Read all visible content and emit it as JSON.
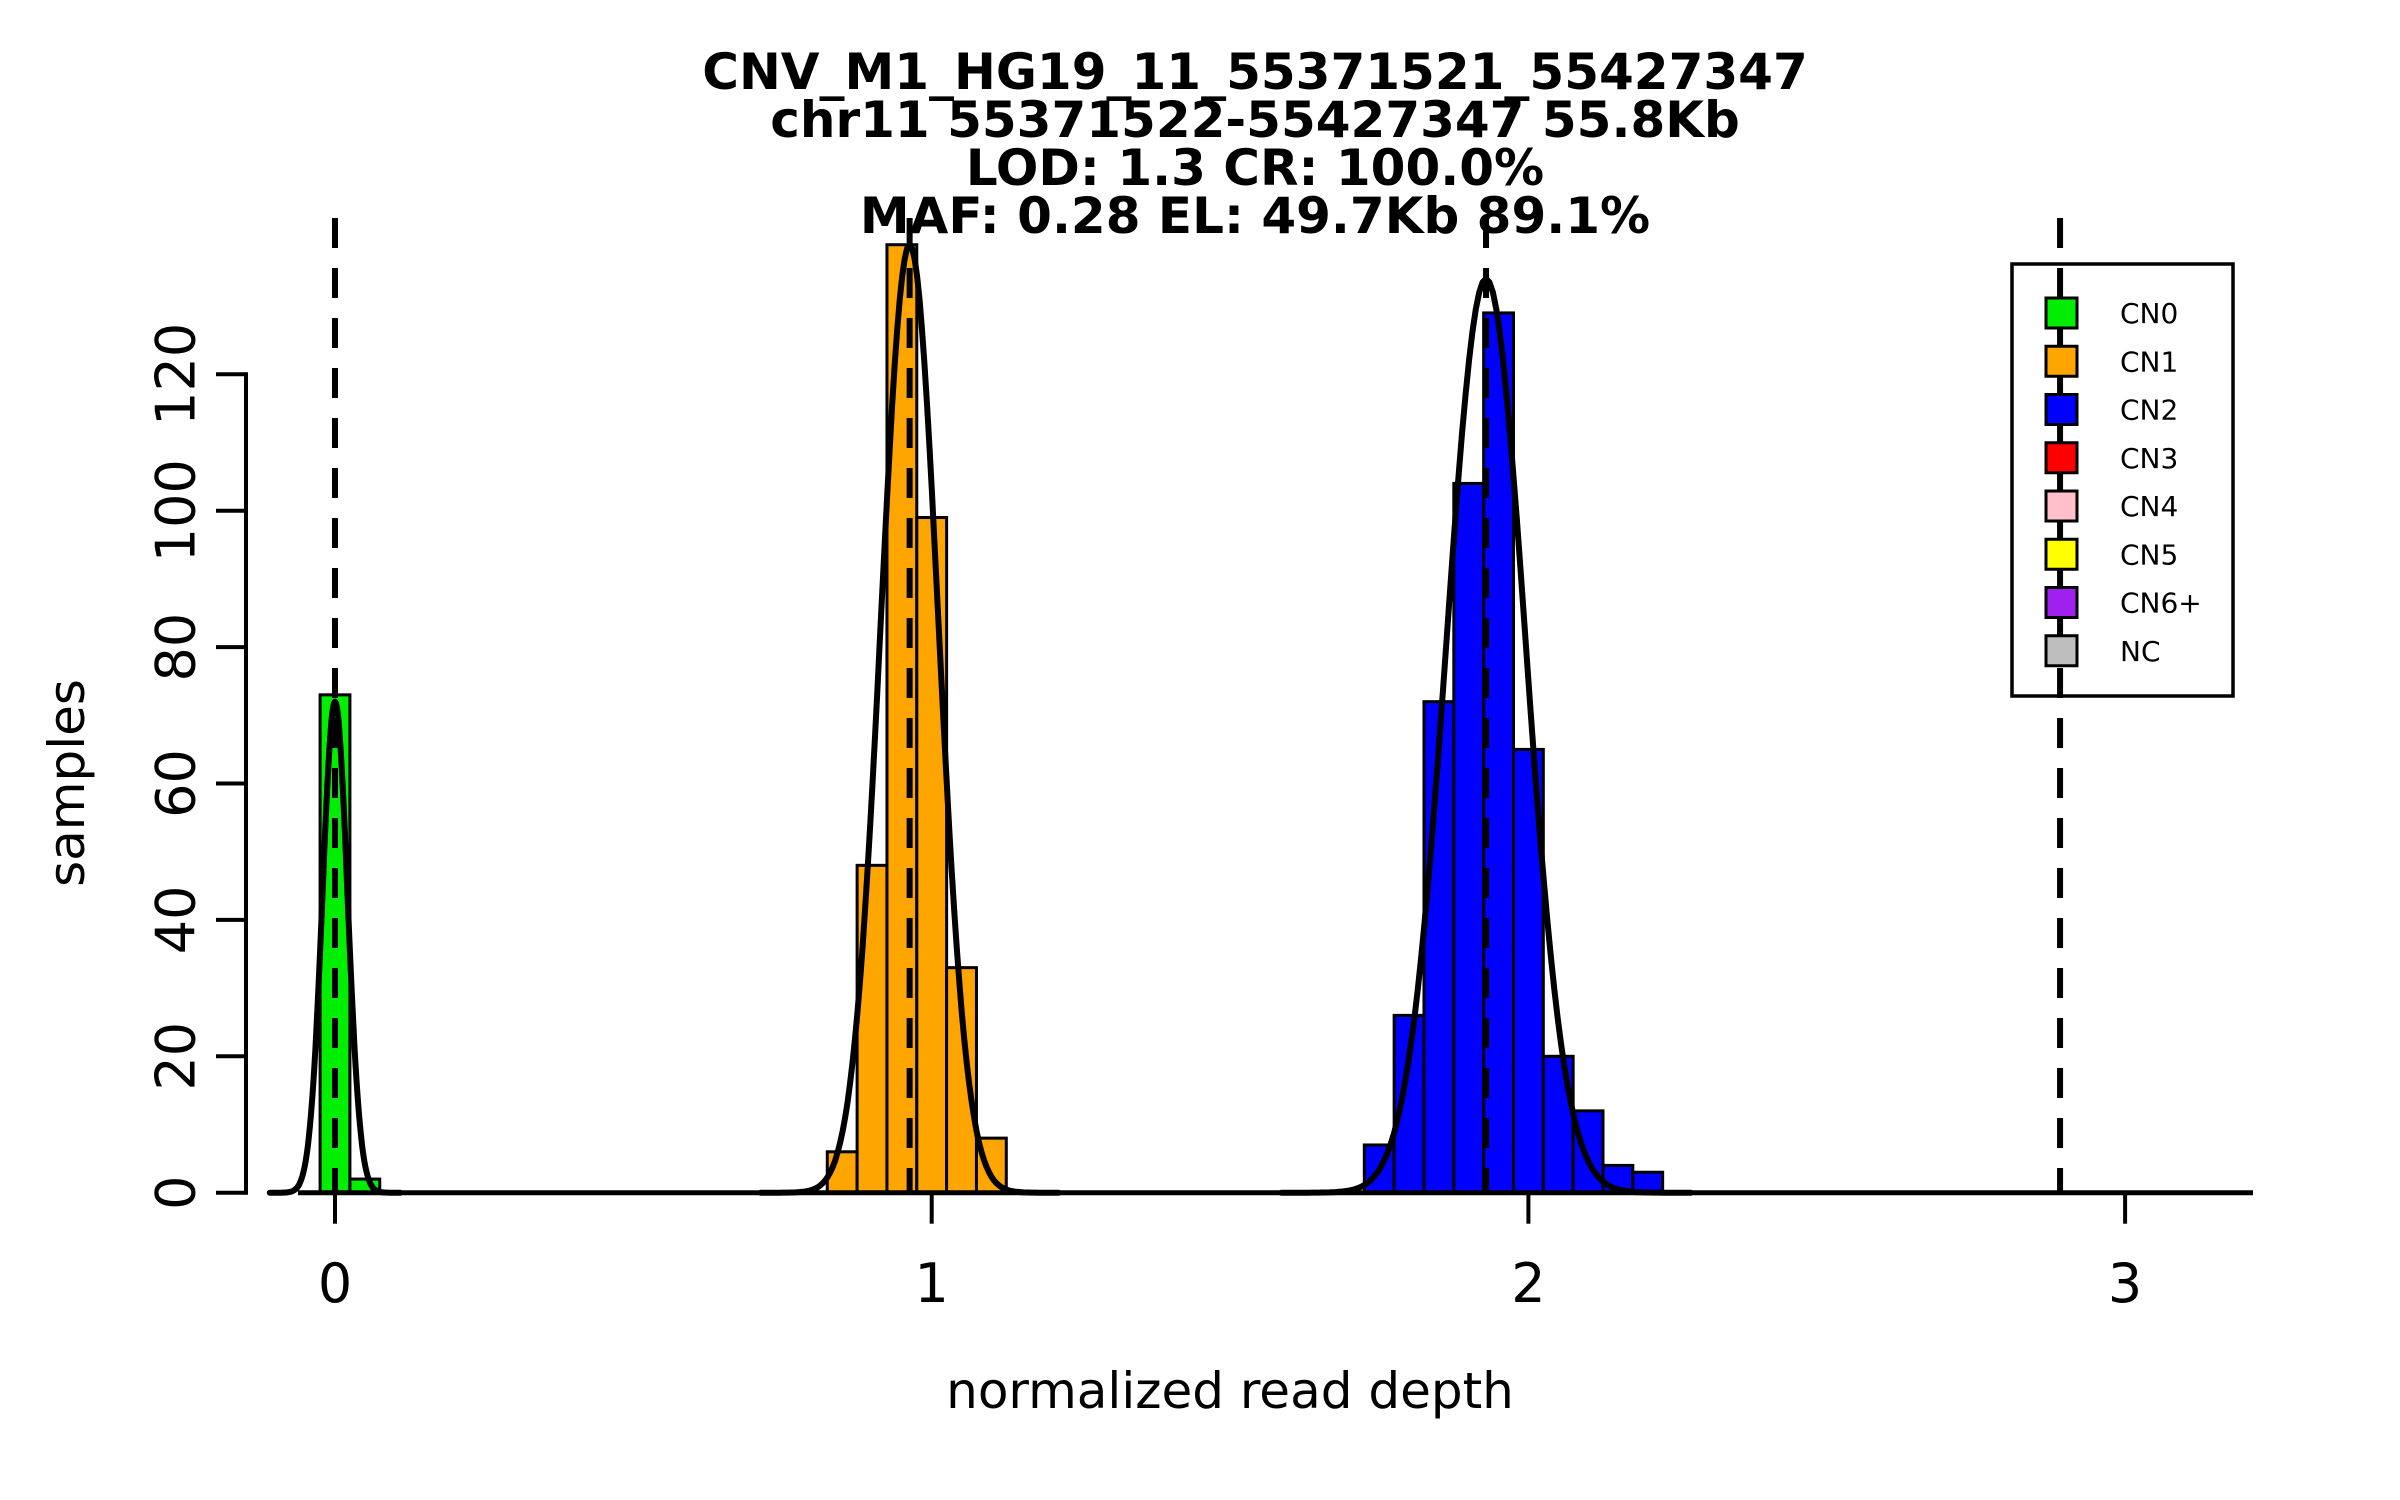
{
  "title": {
    "line1": "CNV_M1_HG19_11_55371521_55427347",
    "line2": "chr11 55371522-55427347 55.8Kb",
    "line3": "LOD: 1.3 CR: 100.0%",
    "line4": "MAF: 0.28 EL: 49.7Kb 89.1%"
  },
  "axes": {
    "x_label": "normalized read depth",
    "y_label": "samples",
    "x_ticks": [
      0,
      1,
      2,
      3
    ],
    "y_ticks": [
      0,
      20,
      40,
      60,
      80,
      100,
      120
    ]
  },
  "legend": {
    "items": [
      {
        "label": "CN0",
        "color": "#00EE00"
      },
      {
        "label": "CN1",
        "color": "#FFA500"
      },
      {
        "label": "CN2",
        "color": "#0000FF"
      },
      {
        "label": "CN3",
        "color": "#FF0000"
      },
      {
        "label": "CN4",
        "color": "#FFC0CB"
      },
      {
        "label": "CN5",
        "color": "#FFFF00"
      },
      {
        "label": "CN6+",
        "color": "#A020F0"
      },
      {
        "label": "NC",
        "color": "#BEBEBE"
      }
    ]
  },
  "chart_data": {
    "type": "bar",
    "subtype": "histogram-with-density-curves",
    "title": "CNV_M1_HG19_11_55371521_55427347",
    "xlabel": "normalized read depth",
    "ylabel": "samples",
    "xlim": [
      -0.15,
      3.35
    ],
    "ylim": [
      0,
      140
    ],
    "x_ticks": [
      0,
      1,
      2,
      3
    ],
    "y_ticks": [
      0,
      20,
      40,
      60,
      80,
      100,
      120
    ],
    "grid": "off",
    "legend_position": "top-right",
    "series": [
      {
        "name": "CN0",
        "color": "#00EE00",
        "bin_edges": [
          -0.025,
          0.025,
          0.075
        ],
        "counts": [
          73,
          2
        ],
        "curve": {
          "mean": 0.0,
          "sd": 0.021,
          "peak": 72
        }
      },
      {
        "name": "CN1",
        "color": "#FFA500",
        "bin_edges": [
          0.825,
          0.875,
          0.925,
          0.975,
          1.025,
          1.075,
          1.125
        ],
        "counts": [
          6,
          48,
          139,
          99,
          33,
          8
        ],
        "curve": {
          "mean": 0.963,
          "sd": 0.048,
          "peak": 139
        }
      },
      {
        "name": "CN2",
        "color": "#0000FF",
        "bin_edges": [
          1.725,
          1.775,
          1.825,
          1.875,
          1.925,
          1.975,
          2.025,
          2.075,
          2.125,
          2.175,
          2.225
        ],
        "counts": [
          7,
          26,
          72,
          104,
          129,
          65,
          20,
          12,
          4,
          3
        ],
        "curve": {
          "mean": 1.929,
          "sd": 0.066,
          "peak": 134
        }
      }
    ],
    "cluster_mean_dashed_lines_x": [
      0.0,
      0.963,
      1.929,
      2.891
    ],
    "annotations": [
      "dashed vertical line at each copy-number cluster mean",
      "fourth dashed line at 2.89 has no data (passes through legend)"
    ]
  }
}
